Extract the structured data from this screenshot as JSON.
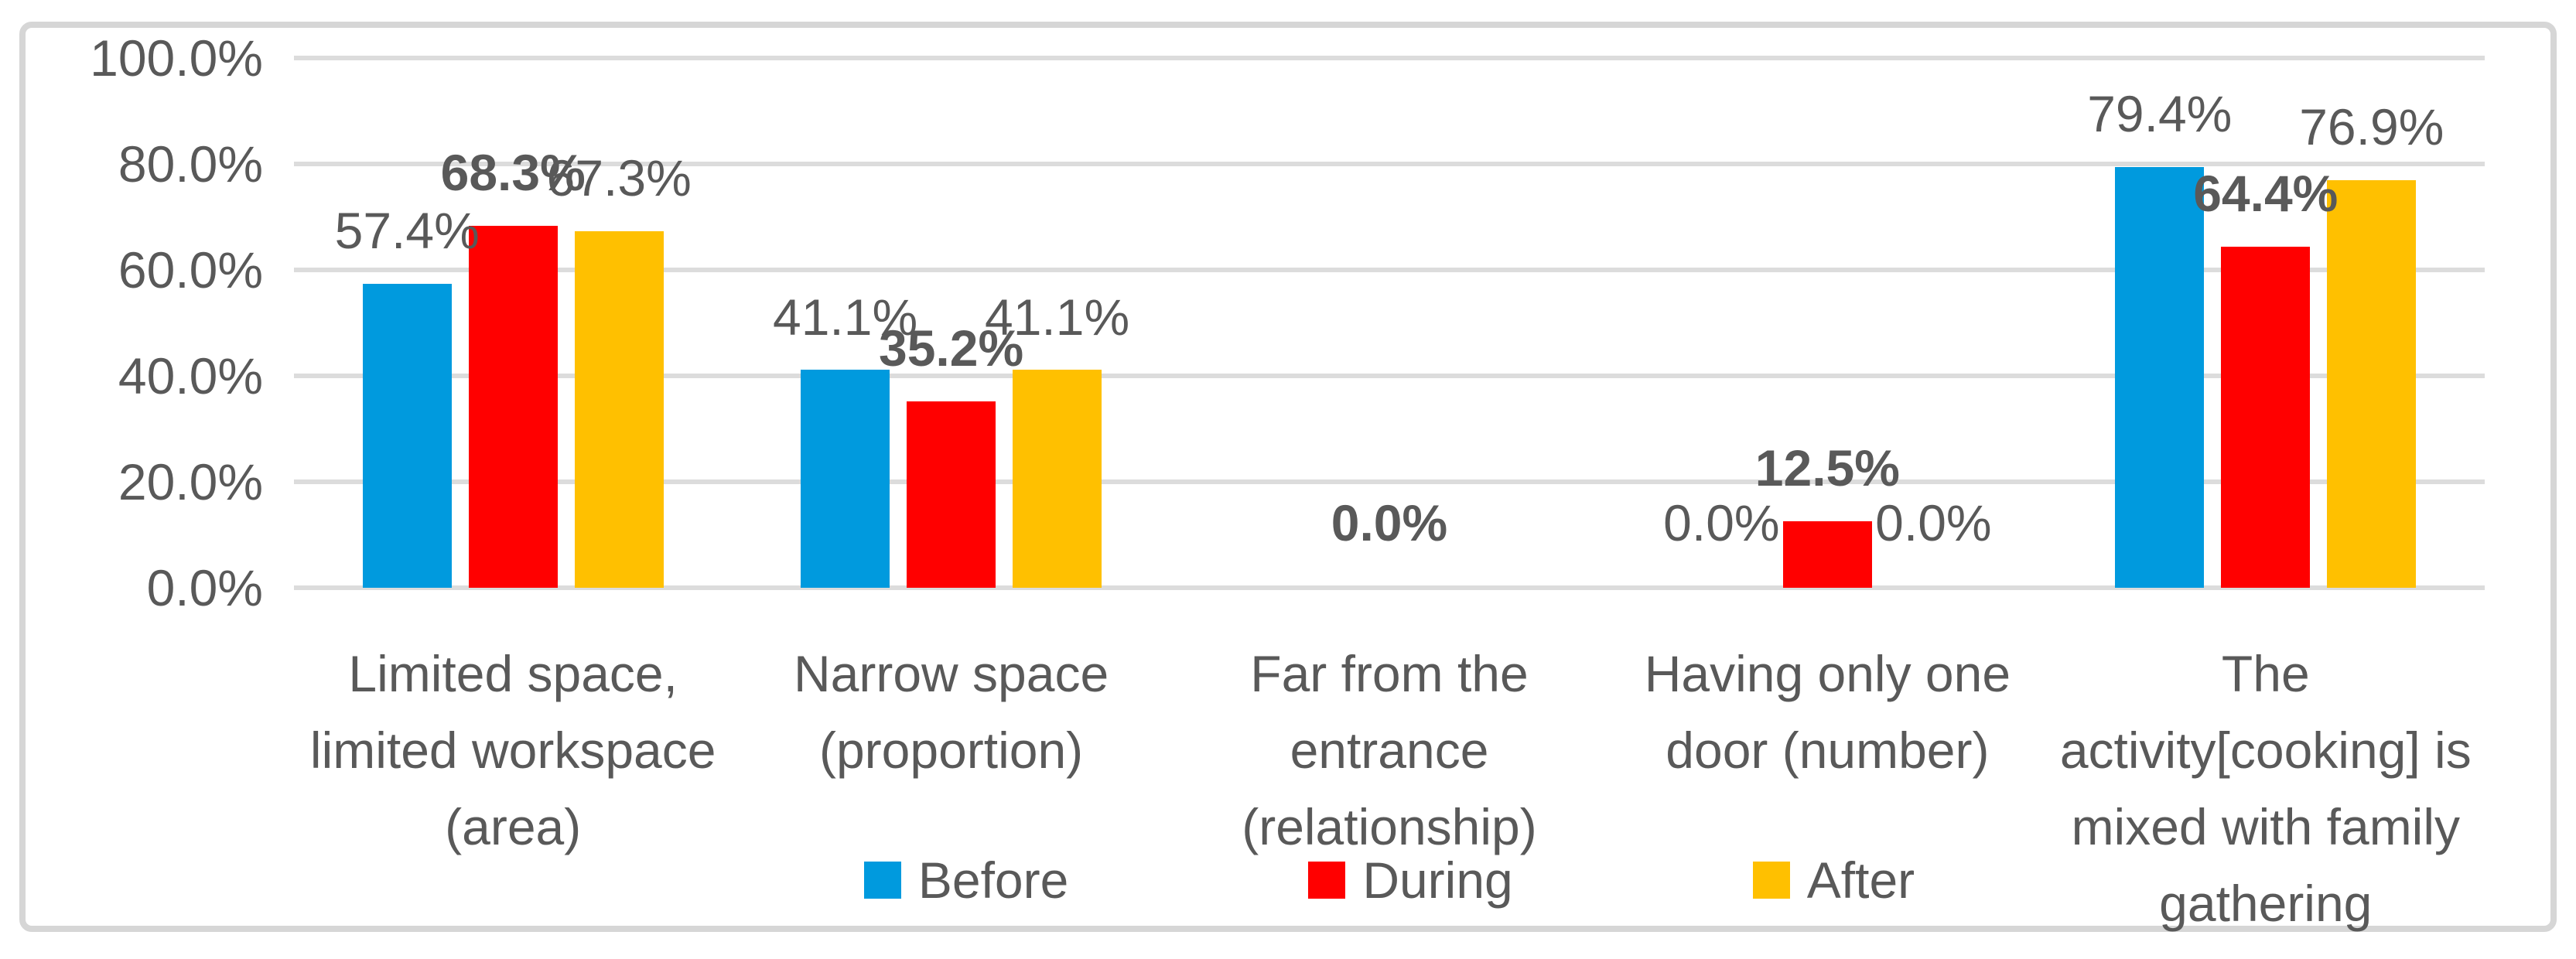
{
  "chart_data": {
    "type": "bar",
    "title": "",
    "xlabel": "",
    "ylabel": "",
    "categories": [
      "Limited space, limited workspace (area)",
      "Narrow space (proportion)",
      "Far from the entrance (relationship)",
      "Having only one door (number)",
      "The activity[cooking] is mixed with family gathering"
    ],
    "category_label_lines": [
      [
        "Limited space,",
        "limited workspace",
        "(area)"
      ],
      [
        "Narrow space",
        "(proportion)"
      ],
      [
        "Far from the",
        "entrance",
        "(relationship)"
      ],
      [
        "Having only one",
        "door (number)"
      ],
      [
        "The",
        "activity[cooking] is",
        "mixed with family",
        "gathering"
      ]
    ],
    "series": [
      {
        "name": "Before",
        "color": "#009ade",
        "bold_labels": false,
        "values": [
          57.4,
          41.1,
          null,
          0.0,
          79.4
        ],
        "labels": [
          "57.4%",
          "41.1%",
          null,
          "0.0%",
          "79.4%"
        ]
      },
      {
        "name": "During",
        "color": "#ff0000",
        "bold_labels": true,
        "values": [
          68.3,
          35.2,
          0.0,
          12.5,
          64.4
        ],
        "labels": [
          "68.3%",
          "35.2%",
          "0.0%",
          "12.5%",
          "64.4%"
        ]
      },
      {
        "name": "After",
        "color": "#ffc000",
        "bold_labels": false,
        "values": [
          67.3,
          41.1,
          null,
          0.0,
          76.9
        ],
        "labels": [
          "67.3%",
          "41.1%",
          null,
          "0.0%",
          "76.9%"
        ]
      }
    ],
    "y_axis": {
      "min": 0,
      "max": 100,
      "step": 20,
      "tick_labels": [
        "100.0%",
        "80.0%",
        "60.0%",
        "40.0%",
        "20.0%",
        "0.0%"
      ]
    },
    "legend": {
      "position": "bottom-center",
      "items": [
        "Before",
        "During",
        "After"
      ]
    },
    "grid": true,
    "colors": {
      "gridline": "#dcdcdc",
      "frame_border": "#d6d6d6",
      "text": "#595959",
      "background": "#ffffff"
    }
  }
}
